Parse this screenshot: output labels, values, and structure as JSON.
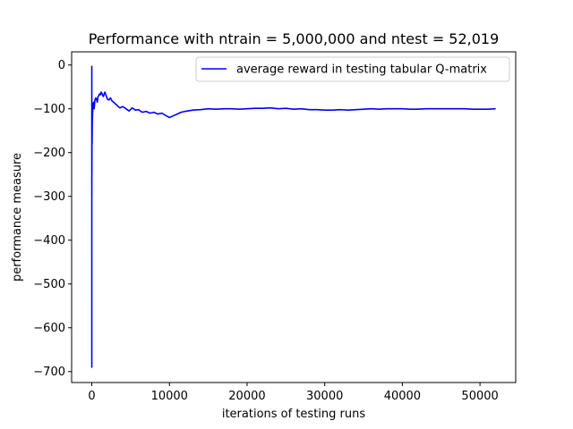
{
  "chart_data": {
    "type": "line",
    "title": "Performance with ntrain = 5,000,000 and ntest = 52,019",
    "xlabel": "iterations of testing runs",
    "ylabel": "performance measure",
    "xlim": [
      -2600,
      54600
    ],
    "ylim": [
      -725,
      30
    ],
    "xticks": [
      0,
      10000,
      20000,
      30000,
      40000,
      50000
    ],
    "xtick_labels": [
      "0",
      "10000",
      "20000",
      "30000",
      "40000",
      "50000"
    ],
    "yticks": [
      0,
      -100,
      -200,
      -300,
      -400,
      -500,
      -600,
      -700
    ],
    "ytick_labels": [
      "0",
      "−100",
      "−200",
      "−300",
      "−400",
      "−500",
      "−600",
      "−700"
    ],
    "grid": false,
    "legend_position": "top-right",
    "series": [
      {
        "name": "average reward in testing tabular Q-matrix",
        "color": "#0000ff",
        "x": [
          0,
          1,
          2,
          3,
          5,
          8,
          12,
          20,
          35,
          60,
          100,
          150,
          220,
          300,
          400,
          500,
          600,
          700,
          800,
          900,
          1000,
          1100,
          1200,
          1300,
          1400,
          1500,
          1600,
          1700,
          1800,
          1900,
          2000,
          2200,
          2400,
          2600,
          2800,
          3000,
          3300,
          3600,
          4000,
          4400,
          4800,
          5200,
          5600,
          6000,
          6500,
          7000,
          7500,
          8000,
          8500,
          9000,
          9500,
          10000,
          10500,
          11000,
          11500,
          12000,
          13000,
          14000,
          15000,
          16000,
          17000,
          18000,
          19000,
          20000,
          21000,
          22000,
          23000,
          24000,
          25000,
          26000,
          27000,
          28000,
          29000,
          30000,
          31000,
          32000,
          33000,
          34000,
          35000,
          36000,
          37000,
          38000,
          39000,
          40000,
          41000,
          42000,
          43000,
          44000,
          45000,
          46000,
          47000,
          48000,
          49000,
          50000,
          51000,
          52019
        ],
        "values": [
          -2,
          -690,
          -4,
          -120,
          -300,
          -200,
          -250,
          -150,
          -180,
          -130,
          -110,
          -95,
          -85,
          -100,
          -80,
          -75,
          -78,
          -85,
          -72,
          -70,
          -66,
          -68,
          -62,
          -65,
          -70,
          -72,
          -65,
          -62,
          -68,
          -72,
          -78,
          -80,
          -75,
          -82,
          -85,
          -88,
          -93,
          -98,
          -95,
          -100,
          -105,
          -98,
          -103,
          -102,
          -108,
          -106,
          -110,
          -108,
          -112,
          -110,
          -115,
          -120,
          -116,
          -112,
          -108,
          -106,
          -103,
          -102,
          -100,
          -101,
          -100,
          -100,
          -101,
          -100,
          -99,
          -99,
          -98,
          -100,
          -99,
          -101,
          -100,
          -102,
          -102,
          -103,
          -103,
          -102,
          -103,
          -102,
          -101,
          -100,
          -101,
          -100,
          -100,
          -100,
          -101,
          -101,
          -100,
          -100,
          -100,
          -100,
          -100,
          -100,
          -101,
          -101,
          -101,
          -100
        ]
      }
    ]
  }
}
